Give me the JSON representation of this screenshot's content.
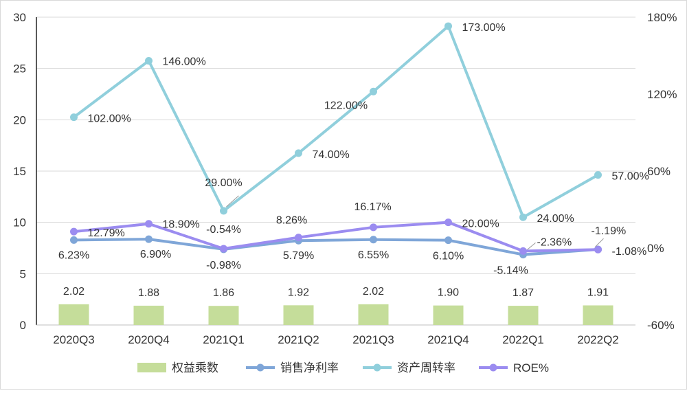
{
  "chart_data": {
    "type": "bar+line",
    "categories": [
      "2020Q3",
      "2020Q4",
      "2021Q1",
      "2021Q2",
      "2021Q3",
      "2021Q4",
      "2022Q1",
      "2022Q2"
    ],
    "left_axis": {
      "ylim": [
        0,
        30
      ],
      "ticks": [
        "0",
        "5",
        "10",
        "15",
        "20",
        "25",
        "30"
      ]
    },
    "right_axis": {
      "ylim": [
        -60,
        180
      ],
      "ticks": [
        "-60%",
        "0%",
        "60%",
        "120%",
        "180%"
      ]
    },
    "grid": true,
    "legend_position": "bottom",
    "series": [
      {
        "name": "权益乘数",
        "type": "bar",
        "axis": "left",
        "color": "#c5dd9a",
        "values": [
          2.02,
          1.88,
          1.86,
          1.92,
          2.02,
          1.9,
          1.87,
          1.91
        ],
        "labels": [
          "2.02",
          "1.88",
          "1.86",
          "1.92",
          "2.02",
          "1.90",
          "1.87",
          "1.91"
        ]
      },
      {
        "name": "销售净利率",
        "type": "line",
        "axis": "right",
        "color": "#7fa6d8",
        "values": [
          6.23,
          6.9,
          -0.98,
          5.79,
          6.55,
          6.1,
          -5.14,
          -1.08
        ],
        "labels": [
          "6.23%",
          "6.90%",
          "-0.98%",
          "5.79%",
          "6.55%",
          "6.10%",
          "-5.14%",
          "-1.08%"
        ]
      },
      {
        "name": "资产周转率",
        "type": "line",
        "axis": "right",
        "color": "#90cfdc",
        "values": [
          102.0,
          146.0,
          29.0,
          74.0,
          122.0,
          173.0,
          24.0,
          57.0
        ],
        "labels": [
          "102.00%",
          "146.00%",
          "29.00%",
          "74.00%",
          "122.00%",
          "173.00%",
          "24.00%",
          "57.00%"
        ]
      },
      {
        "name": "ROE%",
        "type": "line",
        "axis": "right",
        "color": "#9b8cf0",
        "values": [
          12.79,
          18.9,
          -0.54,
          8.26,
          16.17,
          20.0,
          -2.36,
          -1.19
        ],
        "labels": [
          "12.79%",
          "18.90%",
          "-0.54%",
          "8.26%",
          "16.17%",
          "20.00%",
          "-2.36%",
          "-1.19%"
        ]
      }
    ]
  }
}
